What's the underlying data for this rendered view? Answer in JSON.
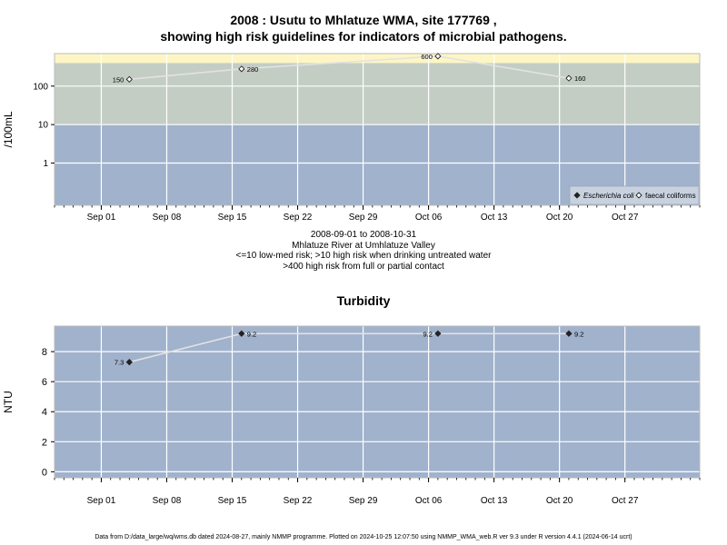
{
  "chart_data": [
    {
      "type": "line",
      "title_line1": "2008 : Usutu to Mhlatuze WMA, site 177769 ,",
      "title_line2": "showing high risk guidelines for indicators of microbial pathogens.",
      "ylabel": "/100mL",
      "yscale": "log",
      "ylim": [
        0.08,
        700
      ],
      "yticks": [
        {
          "value": 1,
          "label": "1"
        },
        {
          "value": 10,
          "label": "10"
        },
        {
          "value": 100,
          "label": "100"
        }
      ],
      "xlim": [
        "2008-08-27",
        "2008-11-04"
      ],
      "xticks": [
        "Sep 01",
        "Sep 08",
        "Sep 15",
        "Sep 22",
        "Sep 29",
        "Oct 06",
        "Oct 13",
        "Oct 20",
        "Oct 27"
      ],
      "bands": [
        {
          "from": 0.08,
          "to": 10,
          "color": "#a0b2cc",
          "meaning": "<=10 low-med risk"
        },
        {
          "from": 10,
          "to": 400,
          "color": "#c4cdc4",
          "meaning": ">10 high risk when drinking untreated water"
        },
        {
          "from": 400,
          "to": 700,
          "color": "#fdf6c4",
          "meaning": ">400 high risk from full or partial contact"
        }
      ],
      "grid": true,
      "legend_position": "bottom-right",
      "legend": [
        {
          "name": "Escherichia coli",
          "marker": "filled-diamond"
        },
        {
          "name": "faecal coliforms",
          "marker": "open-diamond"
        }
      ],
      "series": [
        {
          "name": "faecal coliforms",
          "x": [
            "2008-09-04",
            "2008-09-16",
            "2008-10-07",
            "2008-10-21"
          ],
          "values": [
            150,
            280,
            600,
            160
          ],
          "labels": [
            "150",
            "280",
            "600",
            "160"
          ]
        }
      ],
      "subtitle_lines": [
        "2008-09-01 to 2008-10-31",
        "Mhlatuze River at Umhlatuze Valley",
        "<=10 low-med risk; >10 high risk when drinking untreated water",
        ">400 high risk from full or partial contact"
      ]
    },
    {
      "type": "line",
      "title": "Turbidity",
      "ylabel": "NTU",
      "ylim": [
        -0.4,
        9.7
      ],
      "yticks": [
        0,
        2,
        4,
        6,
        8
      ],
      "xlim": [
        "2008-08-27",
        "2008-11-04"
      ],
      "xticks": [
        "Sep 01",
        "Sep 08",
        "Sep 15",
        "Sep 22",
        "Sep 29",
        "Oct 06",
        "Oct 13",
        "Oct 20",
        "Oct 27"
      ],
      "grid": true,
      "series": [
        {
          "name": "Turbidity",
          "x": [
            "2008-09-04",
            "2008-09-16",
            "2008-10-07",
            "2008-10-21"
          ],
          "values": [
            7.3,
            9.2,
            9.2,
            9.2
          ],
          "labels": [
            "7.3",
            "9.2",
            "9.2",
            "9.2"
          ]
        }
      ]
    }
  ],
  "footer": "Data from D:/data_large/wq/wms.db dated 2024-08-27, mainly NMMP programme. Plotted on 2024-10-25 12:07:50 using NMMP_WMA_web.R ver 9.3 under R version 4.4.1 (2024-06-14 ucrt)",
  "colors": {
    "panel_bg": "#a0b2cc",
    "grid": "#ffffff",
    "line": "#e2e2e2",
    "band_mid": "#c4cdc4",
    "band_high": "#fdf6c4"
  }
}
